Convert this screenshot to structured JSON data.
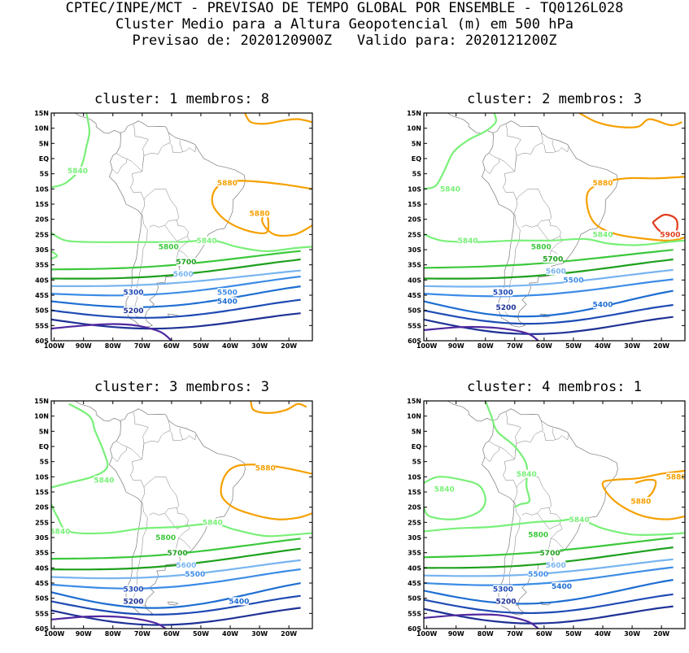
{
  "header": {
    "line1": "CPTEC/INPE/MCT - PREVISAO DE TEMPO GLOBAL POR ENSEMBLE - TQ0126L028",
    "line2": "Cluster Medio para a Altura Geopotencial (m) em 500 hPa",
    "line3": "Previsao de: 2020120900Z   Valido para: 2020121200Z"
  },
  "axes": {
    "lat_labels": [
      "15N",
      "10N",
      "5N",
      "EQ",
      "5S",
      "10S",
      "15S",
      "20S",
      "25S",
      "30S",
      "35S",
      "40S",
      "45S",
      "50S",
      "55S",
      "60S"
    ],
    "lon_labels": [
      "100W",
      "90W",
      "80W",
      "70W",
      "60W",
      "50W",
      "40W",
      "30W",
      "20W"
    ]
  },
  "colors": {
    "c5900": "#e03c1c",
    "c5880": "#f5a000",
    "c5840": "#78f078",
    "c5800": "#3cc83c",
    "c5700": "#1ea01e",
    "c5600": "#78b4f0",
    "c5500": "#3c8ce6",
    "c5400": "#1e6ed2",
    "c5300": "#1e4bb4",
    "c5200": "#1e3296",
    "c5100": "#5028a0",
    "coast": "#7a7a7a"
  },
  "panels": [
    {
      "title": "cluster: 1  membros: 8",
      "labels": [
        {
          "text": "5840",
          "lon": -92,
          "lat": -4,
          "c": "c5840"
        },
        {
          "text": "5880",
          "lon": -41,
          "lat": -8,
          "c": "c5880"
        },
        {
          "text": "5880",
          "lon": -30,
          "lat": -18,
          "c": "c5880"
        },
        {
          "text": "5840",
          "lon": -48,
          "lat": -27,
          "c": "c5840"
        },
        {
          "text": "5800",
          "lon": -61,
          "lat": -29,
          "c": "c5800"
        },
        {
          "text": "5700",
          "lon": -55,
          "lat": -34,
          "c": "c5700"
        },
        {
          "text": "5600",
          "lon": -56,
          "lat": -38,
          "c": "c5600"
        },
        {
          "text": "5500",
          "lon": -41,
          "lat": -44,
          "c": "c5500"
        },
        {
          "text": "5300",
          "lon": -73,
          "lat": -44,
          "c": "c5300"
        },
        {
          "text": "5400",
          "lon": -41,
          "lat": -47,
          "c": "c5400"
        },
        {
          "text": "5200",
          "lon": -73,
          "lat": -50,
          "c": "c5200"
        }
      ]
    },
    {
      "title": "cluster: 2  membros: 3",
      "labels": [
        {
          "text": "5840",
          "lon": -92,
          "lat": -10,
          "c": "c5840"
        },
        {
          "text": "5880",
          "lon": -40,
          "lat": -8,
          "c": "c5880"
        },
        {
          "text": "5900",
          "lon": -17,
          "lat": -25,
          "c": "c5900"
        },
        {
          "text": "5840",
          "lon": -40,
          "lat": -25,
          "c": "c5840"
        },
        {
          "text": "5840",
          "lon": -86,
          "lat": -27,
          "c": "c5840"
        },
        {
          "text": "5800",
          "lon": -61,
          "lat": -29,
          "c": "c5800"
        },
        {
          "text": "5700",
          "lon": -57,
          "lat": -33,
          "c": "c5700"
        },
        {
          "text": "5600",
          "lon": -56,
          "lat": -37,
          "c": "c5600"
        },
        {
          "text": "5500",
          "lon": -50,
          "lat": -40,
          "c": "c5500"
        },
        {
          "text": "5300",
          "lon": -74,
          "lat": -44,
          "c": "c5300"
        },
        {
          "text": "5400",
          "lon": -40,
          "lat": -48,
          "c": "c5400"
        },
        {
          "text": "5200",
          "lon": -73,
          "lat": -49,
          "c": "c5200"
        }
      ]
    },
    {
      "title": "cluster: 3  membros: 3",
      "labels": [
        {
          "text": "5880",
          "lon": -28,
          "lat": -7,
          "c": "c5880"
        },
        {
          "text": "5840",
          "lon": -83,
          "lat": -11,
          "c": "c5840"
        },
        {
          "text": "5840",
          "lon": -46,
          "lat": -25,
          "c": "c5840"
        },
        {
          "text": "5840",
          "lon": -98,
          "lat": -28,
          "c": "c5840"
        },
        {
          "text": "5800",
          "lon": -62,
          "lat": -30,
          "c": "c5800"
        },
        {
          "text": "5700",
          "lon": -58,
          "lat": -35,
          "c": "c5700"
        },
        {
          "text": "5600",
          "lon": -55,
          "lat": -39,
          "c": "c5600"
        },
        {
          "text": "5500",
          "lon": -52,
          "lat": -42,
          "c": "c5500"
        },
        {
          "text": "5300",
          "lon": -73,
          "lat": -47,
          "c": "c5300"
        },
        {
          "text": "5400",
          "lon": -37,
          "lat": -51,
          "c": "c5400"
        },
        {
          "text": "5200",
          "lon": -73,
          "lat": -51,
          "c": "c5200"
        }
      ]
    },
    {
      "title": "cluster: 4  membros: 1",
      "labels": [
        {
          "text": "5880",
          "lon": -15,
          "lat": -10,
          "c": "c5880"
        },
        {
          "text": "5840",
          "lon": -66,
          "lat": -9,
          "c": "c5840"
        },
        {
          "text": "5840",
          "lon": -94,
          "lat": -14,
          "c": "c5840"
        },
        {
          "text": "5880",
          "lon": -27,
          "lat": -18,
          "c": "c5880"
        },
        {
          "text": "5840",
          "lon": -48,
          "lat": -24,
          "c": "c5840"
        },
        {
          "text": "5800",
          "lon": -62,
          "lat": -29,
          "c": "c5800"
        },
        {
          "text": "5700",
          "lon": -58,
          "lat": -35,
          "c": "c5700"
        },
        {
          "text": "5600",
          "lon": -56,
          "lat": -39,
          "c": "c5600"
        },
        {
          "text": "5500",
          "lon": -62,
          "lat": -42,
          "c": "c5500"
        },
        {
          "text": "5400",
          "lon": -54,
          "lat": -46,
          "c": "c5400"
        },
        {
          "text": "5300",
          "lon": -74,
          "lat": -47,
          "c": "c5300"
        },
        {
          "text": "5200",
          "lon": -73,
          "lat": -51,
          "c": "c5200"
        }
      ]
    }
  ]
}
